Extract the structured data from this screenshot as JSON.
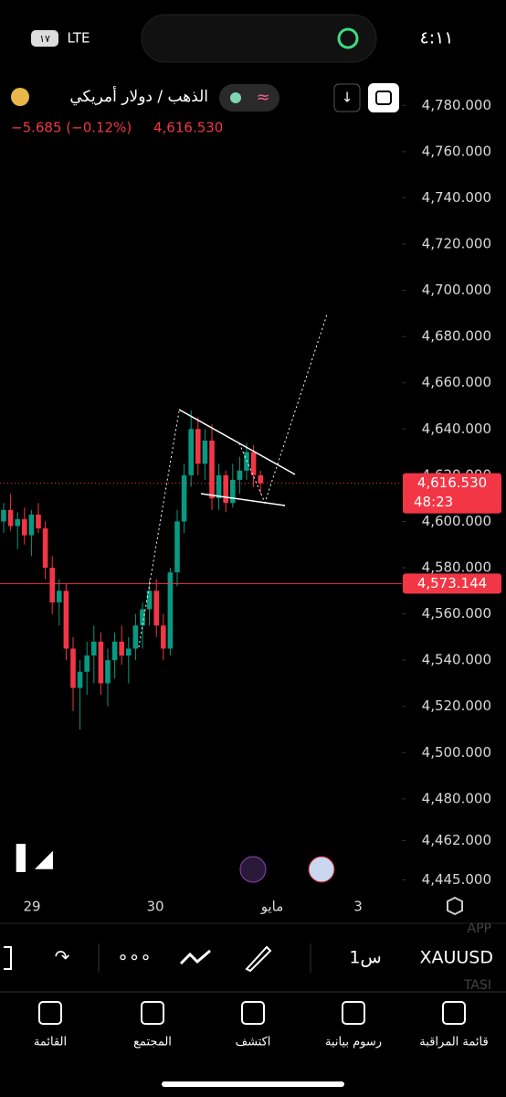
{
  "status_bar": {
    "time": "٤:١١",
    "network": "LTE",
    "battery": "١٧"
  },
  "header": {
    "title": "الذهب / دولار أمريكي",
    "change": "−5.685 (−0.12%)",
    "price": "4,616.530"
  },
  "chart_data": {
    "type": "candlestick",
    "color_up": "#089981",
    "color_down": "#f23645",
    "ylim": [
      4440,
      4790
    ],
    "yticks": [
      {
        "value": 4780,
        "label": "4,780.000"
      },
      {
        "value": 4760,
        "label": "4,760.000"
      },
      {
        "value": 4740,
        "label": "4,740.000"
      },
      {
        "value": 4720,
        "label": "4,720.000"
      },
      {
        "value": 4700,
        "label": "4,700.000"
      },
      {
        "value": 4680,
        "label": "4,680.000"
      },
      {
        "value": 4660,
        "label": "4,660.000"
      },
      {
        "value": 4640,
        "label": "4,640.000"
      },
      {
        "value": 4620,
        "label": "4,620.000"
      },
      {
        "value": 4600,
        "label": "4,600.000"
      },
      {
        "value": 4580,
        "label": "4,580.000"
      },
      {
        "value": 4560,
        "label": "4,560.000"
      },
      {
        "value": 4540,
        "label": "4,540.000"
      },
      {
        "value": 4520,
        "label": "4,520.000"
      },
      {
        "value": 4500,
        "label": "4,500.000"
      },
      {
        "value": 4480,
        "label": "4,480.000"
      },
      {
        "value": 4462,
        "label": "4,462.000"
      },
      {
        "value": 4445,
        "label": "4,445.000"
      }
    ],
    "xtick_labels": [
      "29",
      "30",
      "مايو",
      "3"
    ],
    "candles": [
      {
        "open": 4600,
        "high": 4608,
        "low": 4595,
        "close": 4605
      },
      {
        "open": 4605,
        "high": 4612,
        "low": 4596,
        "close": 4598
      },
      {
        "open": 4598,
        "high": 4604,
        "low": 4588,
        "close": 4601
      },
      {
        "open": 4601,
        "high": 4606,
        "low": 4590,
        "close": 4594
      },
      {
        "open": 4594,
        "high": 4605,
        "low": 4585,
        "close": 4603
      },
      {
        "open": 4603,
        "high": 4608,
        "low": 4595,
        "close": 4597
      },
      {
        "open": 4597,
        "high": 4600,
        "low": 4575,
        "close": 4580
      },
      {
        "open": 4580,
        "high": 4585,
        "low": 4560,
        "close": 4565
      },
      {
        "open": 4565,
        "high": 4575,
        "low": 4555,
        "close": 4570
      },
      {
        "open": 4570,
        "high": 4573,
        "low": 4540,
        "close": 4545
      },
      {
        "open": 4545,
        "high": 4550,
        "low": 4518,
        "close": 4528
      },
      {
        "open": 4528,
        "high": 4540,
        "low": 4510,
        "close": 4535
      },
      {
        "open": 4535,
        "high": 4548,
        "low": 4525,
        "close": 4542
      },
      {
        "open": 4542,
        "high": 4555,
        "low": 4530,
        "close": 4548
      },
      {
        "open": 4548,
        "high": 4552,
        "low": 4525,
        "close": 4530
      },
      {
        "open": 4530,
        "high": 4545,
        "low": 4520,
        "close": 4540
      },
      {
        "open": 4540,
        "high": 4552,
        "low": 4532,
        "close": 4548
      },
      {
        "open": 4548,
        "high": 4555,
        "low": 4538,
        "close": 4542
      },
      {
        "open": 4542,
        "high": 4550,
        "low": 4530,
        "close": 4545
      },
      {
        "open": 4545,
        "high": 4560,
        "low": 4540,
        "close": 4555
      },
      {
        "open": 4555,
        "high": 4565,
        "low": 4545,
        "close": 4562
      },
      {
        "open": 4562,
        "high": 4575,
        "low": 4555,
        "close": 4570
      },
      {
        "open": 4570,
        "high": 4575,
        "low": 4550,
        "close": 4555
      },
      {
        "open": 4555,
        "high": 4560,
        "low": 4540,
        "close": 4545
      },
      {
        "open": 4545,
        "high": 4580,
        "low": 4542,
        "close": 4578
      },
      {
        "open": 4578,
        "high": 4605,
        "low": 4572,
        "close": 4600
      },
      {
        "open": 4600,
        "high": 4625,
        "low": 4595,
        "close": 4620
      },
      {
        "open": 4620,
        "high": 4648,
        "low": 4615,
        "close": 4640
      },
      {
        "open": 4640,
        "high": 4645,
        "low": 4620,
        "close": 4625
      },
      {
        "open": 4625,
        "high": 4640,
        "low": 4618,
        "close": 4635
      },
      {
        "open": 4635,
        "high": 4642,
        "low": 4605,
        "close": 4610
      },
      {
        "open": 4610,
        "high": 4625,
        "low": 4605,
        "close": 4620
      },
      {
        "open": 4620,
        "high": 4622,
        "low": 4604,
        "close": 4608
      },
      {
        "open": 4608,
        "high": 4625,
        "low": 4606,
        "close": 4618
      },
      {
        "open": 4618,
        "high": 4628,
        "low": 4612,
        "close": 4622
      },
      {
        "open": 4622,
        "high": 4634,
        "low": 4618,
        "close": 4630
      },
      {
        "open": 4630,
        "high": 4633,
        "low": 4615,
        "close": 4620
      },
      {
        "open": 4620,
        "high": 4622,
        "low": 4612,
        "close": 4616.53
      }
    ],
    "price_lines": [
      {
        "value": 4616.53,
        "label": "4,616.530",
        "sub": "48:23",
        "style": "dotted"
      },
      {
        "value": 4573.144,
        "label": "4,573.144",
        "style": "solid"
      }
    ]
  },
  "toolbar": {
    "symbol": "XAUUSD",
    "interval": "1س",
    "ghost_1": "APP",
    "ghost_2": "TASI"
  },
  "nav": [
    "قائمة المراقبة",
    "رسوم بيانية",
    "اكتشف",
    "المجتمع",
    "القائمة"
  ]
}
